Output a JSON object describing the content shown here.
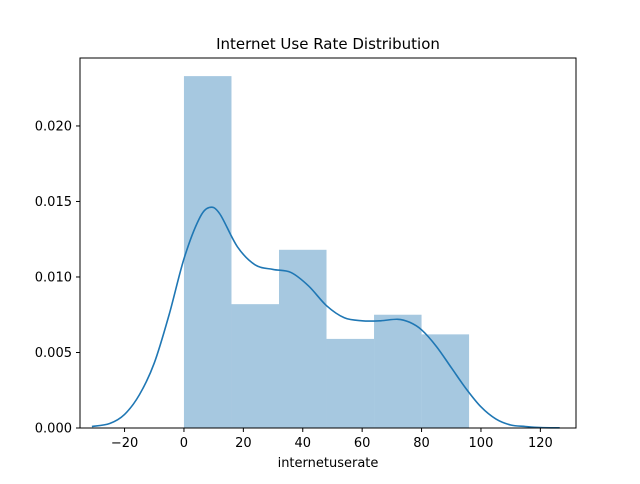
{
  "chart_data": {
    "type": "bar",
    "title": "Internet Use Rate Distribution",
    "xlabel": "internetuserate",
    "ylabel": "",
    "xlim": [
      -35,
      132
    ],
    "ylim": [
      0,
      0.0245
    ],
    "xticks": [
      -20,
      0,
      20,
      40,
      60,
      80,
      100,
      120
    ],
    "xtick_labels": [
      "−20",
      "0",
      "20",
      "40",
      "60",
      "80",
      "100",
      "120"
    ],
    "yticks": [
      0,
      0.005,
      0.01,
      0.015,
      0.02
    ],
    "ytick_labels": [
      "0.000",
      "0.005",
      "0.010",
      "0.015",
      "0.020"
    ],
    "grid": false,
    "legend": "none",
    "histogram": {
      "bin_edges": [
        0,
        16,
        32,
        48,
        64,
        80,
        96
      ],
      "values": [
        0.0233,
        0.0082,
        0.0118,
        0.0059,
        0.0075,
        0.0062
      ],
      "color": "#a6c8e0"
    },
    "kde": {
      "color": "#1f77b4",
      "x": [
        -31,
        -25,
        -20,
        -15,
        -10,
        -5,
        0,
        5,
        8.5,
        12,
        18,
        24,
        30,
        36,
        42,
        48,
        54,
        60,
        66,
        72,
        76,
        80,
        85,
        90,
        95,
        100,
        105,
        110,
        115,
        120,
        126.5
      ],
      "y": [
        0.0001,
        0.0003,
        0.0009,
        0.0022,
        0.0043,
        0.0075,
        0.0112,
        0.0138,
        0.0146,
        0.0142,
        0.012,
        0.0108,
        0.0105,
        0.0103,
        0.0094,
        0.0081,
        0.0073,
        0.0071,
        0.0071,
        0.0072,
        0.007,
        0.0065,
        0.0054,
        0.004,
        0.0026,
        0.0014,
        0.0006,
        0.0002,
        0.0001,
        3e-05,
        1e-05
      ]
    }
  }
}
